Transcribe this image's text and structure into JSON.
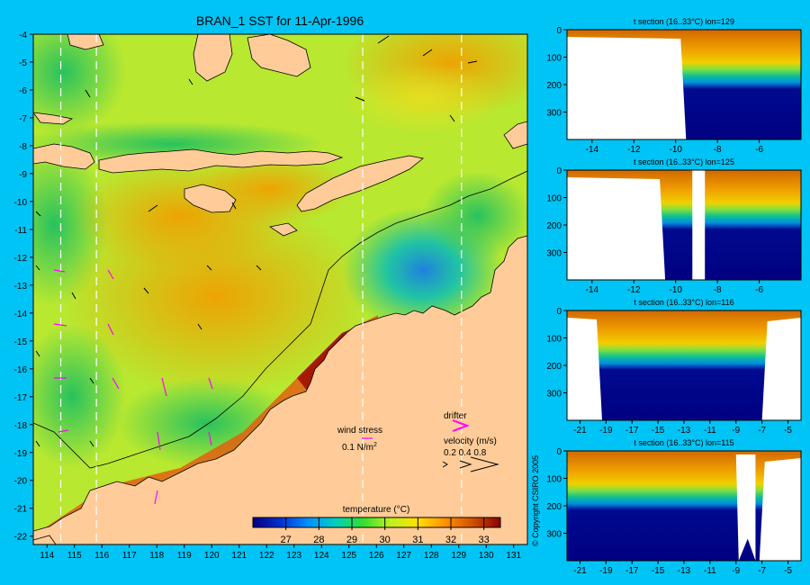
{
  "chart_data": [
    {
      "type": "heatmap",
      "title": "BRAN_1 SST for 11-Apr-1996",
      "x_ticks": [
        114,
        115,
        116,
        117,
        118,
        119,
        120,
        121,
        122,
        123,
        124,
        125,
        126,
        127,
        128,
        129,
        130,
        131
      ],
      "y_ticks": [
        -4,
        -5,
        -6,
        -7,
        -8,
        -9,
        -10,
        -11,
        -12,
        -13,
        -14,
        -15,
        -16,
        -17,
        -18,
        -19,
        -20,
        -21,
        -22
      ],
      "xlim": [
        113.5,
        131.5
      ],
      "ylim": [
        -22.3,
        -4
      ],
      "section_lines_lon": [
        114.5,
        115.8,
        125.5,
        129.1
      ],
      "colorbar": {
        "label": "temperature (°C)",
        "ticks": [
          27,
          28,
          29,
          30,
          31,
          32,
          33
        ],
        "range": [
          26,
          33.5
        ],
        "colors": [
          "#000080",
          "#0030d0",
          "#0090ff",
          "#00d0c0",
          "#30e030",
          "#c0f020",
          "#ffe000",
          "#ff9000",
          "#d05000",
          "#8b0000"
        ]
      },
      "legend": {
        "wind_stress_label": "wind stress",
        "wind_stress_value": "0.1 N/m",
        "wind_stress_exp": "2",
        "drifter_label": "drifter",
        "velocity_label": "velocity (m/s)",
        "velocity_ticks": "0.2 0.4 0.8"
      },
      "colors": {
        "land": "#ffcc99",
        "drifter": "#ff00ff"
      }
    },
    {
      "type": "heatmap",
      "title": "t section (16..33°C) lon=129",
      "x_ticks": [
        -14,
        -12,
        -10,
        -8,
        -6
      ],
      "y_ticks": [
        0,
        100,
        200,
        300
      ],
      "xlim": [
        -15.2,
        -4
      ],
      "ylim": [
        400,
        0
      ]
    },
    {
      "type": "heatmap",
      "title": "t section (16..33°C) lon=125",
      "x_ticks": [
        -14,
        -12,
        -10,
        -8,
        -6
      ],
      "y_ticks": [
        0,
        100,
        200,
        300
      ],
      "xlim": [
        -15.2,
        -4
      ],
      "ylim": [
        400,
        0
      ]
    },
    {
      "type": "heatmap",
      "title": "t section (16..33°C) lon=116",
      "x_ticks": [
        -21,
        -19,
        -17,
        -15,
        -13,
        -11,
        -9,
        -7,
        -5
      ],
      "y_ticks": [
        0,
        100,
        200,
        300
      ],
      "xlim": [
        -22,
        -4
      ],
      "ylim": [
        400,
        0
      ]
    },
    {
      "type": "heatmap",
      "title": "t section (16..33°C) lon=115",
      "x_ticks": [
        -21,
        -19,
        -17,
        -15,
        -13,
        -11,
        -9,
        -7,
        -5
      ],
      "y_ticks": [
        0,
        100,
        200,
        300
      ],
      "xlim": [
        -22,
        -4
      ],
      "ylim": [
        400,
        0
      ]
    }
  ],
  "copyright": "© Copyright CSIRO 2005"
}
